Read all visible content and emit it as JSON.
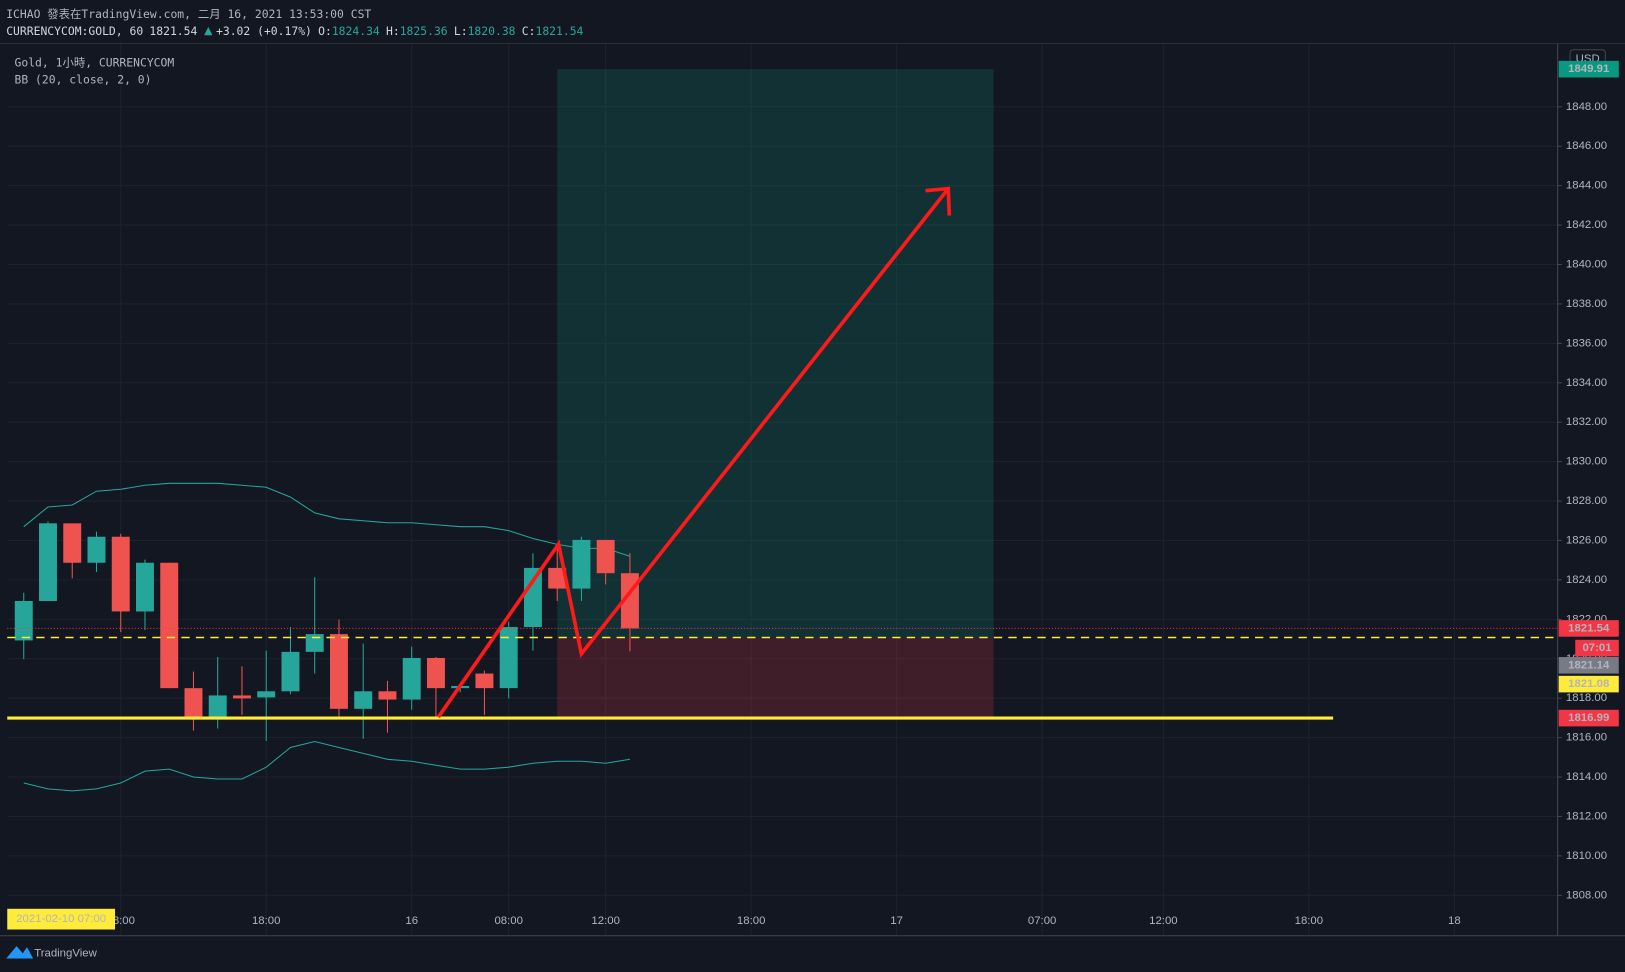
{
  "header": {
    "title": "ICHAO 發表在TradingView.com, 二月 16, 2021 13:53:00 CST",
    "symbol": "CURRENCYCOM:GOLD, 60",
    "last": 1821.54,
    "change": "+3.02 (+0.17%)",
    "open_label": "O:",
    "open": 1824.34,
    "high_label": "H:",
    "high": 1825.36,
    "low_label": "L:",
    "low": 1820.38,
    "close_label": "C:",
    "close": 1821.54
  },
  "chart_data": {
    "type": "candlestick",
    "legend_title": "Gold, 1小時, CURRENCYCOM",
    "indicator": "BB (20, close, 2, 0)",
    "currency": "USD",
    "crosshair_label": "2021-02-10  07:00",
    "countdown": "07:01",
    "up_color": "#26a69a",
    "down_color": "#ef5350",
    "band_color": "#26a69a",
    "open": [
      1820.93,
      1822.93,
      1826.87,
      1824.87,
      1826.19,
      1822.4,
      1824.87,
      1818.51,
      1816.99,
      1818.14,
      1818.04,
      1818.35,
      1820.35,
      1821.25,
      1817.46,
      1818.35,
      1817.93,
      1820.04,
      1818.51,
      1819.25,
      1818.51,
      1821.61,
      1824.61,
      1823.56,
      1826.03,
      1824.34
    ],
    "high": [
      1823.35,
      1826.97,
      1826.87,
      1826.45,
      1826.34,
      1825.03,
      1824.87,
      1819.35,
      1820.09,
      1819.62,
      1820.41,
      1821.61,
      1824.14,
      1821.98,
      1820.77,
      1818.88,
      1820.62,
      1820.09,
      1818.72,
      1819.4,
      1821.88,
      1825.35,
      1825.82,
      1826.19,
      1826.03,
      1825.36
    ],
    "low": [
      1819.98,
      1822.93,
      1824.08,
      1824.4,
      1821.35,
      1821.46,
      1818.51,
      1816.36,
      1816.46,
      1817.15,
      1815.83,
      1818.2,
      1819.25,
      1817.04,
      1815.94,
      1816.25,
      1817.41,
      1817.04,
      1818.3,
      1817.15,
      1817.99,
      1820.41,
      1822.93,
      1822.93,
      1823.77,
      1820.38
    ],
    "close": [
      1822.93,
      1826.87,
      1824.87,
      1826.19,
      1822.4,
      1824.87,
      1818.51,
      1816.99,
      1818.14,
      1817.99,
      1818.35,
      1820.35,
      1821.25,
      1817.46,
      1818.35,
      1817.93,
      1820.04,
      1818.51,
      1818.62,
      1818.51,
      1821.61,
      1824.61,
      1823.56,
      1826.03,
      1824.34,
      1821.54
    ],
    "bb_upper": [
      1826.7,
      1827.7,
      1827.8,
      1828.5,
      1828.6,
      1828.8,
      1828.9,
      1828.9,
      1828.9,
      1828.8,
      1828.7,
      1828.2,
      1827.4,
      1827.1,
      1827.0,
      1826.9,
      1826.9,
      1826.8,
      1826.7,
      1826.7,
      1826.5,
      1826.1,
      1825.8,
      1825.6,
      1825.6,
      1825.2
    ],
    "bb_lower": [
      1813.7,
      1813.4,
      1813.3,
      1813.4,
      1813.7,
      1814.3,
      1814.4,
      1814.0,
      1813.9,
      1813.9,
      1814.5,
      1815.5,
      1815.8,
      1815.5,
      1815.2,
      1814.9,
      1814.8,
      1814.6,
      1814.4,
      1814.4,
      1814.5,
      1814.7,
      1814.8,
      1814.8,
      1814.7,
      1814.9
    ],
    "bb_basis_last": 1821.14,
    "position": {
      "target": 1849.91,
      "entry": 1821.08,
      "stop": 1816.99,
      "start": 22,
      "end": 40
    },
    "hline": {
      "price": 1816.99,
      "end": 54
    },
    "xlim": [
      -0.68,
      63.26
    ],
    "ylim": [
      1805.95,
      1851.21
    ],
    "xticks": [
      {
        "value": 4,
        "label": "08:00"
      },
      {
        "value": 10,
        "label": "18:00"
      },
      {
        "value": 16,
        "label": "16"
      },
      {
        "value": 20,
        "label": "08:00"
      },
      {
        "value": 24,
        "label": "12:00"
      },
      {
        "value": 30,
        "label": "18:00"
      },
      {
        "value": 36,
        "label": "17"
      },
      {
        "value": 42,
        "label": "07:00"
      },
      {
        "value": 47,
        "label": "12:00"
      },
      {
        "value": 53,
        "label": "18:00"
      },
      {
        "value": 59,
        "label": "18"
      }
    ],
    "yticks": [
      {
        "value": 1808,
        "label": "1808.00"
      },
      {
        "value": 1810,
        "label": "1810.00"
      },
      {
        "value": 1812,
        "label": "1812.00"
      },
      {
        "value": 1814,
        "label": "1814.00"
      },
      {
        "value": 1816,
        "label": "1816.00"
      },
      {
        "value": 1818,
        "label": "1818.00"
      },
      {
        "value": 1820,
        "label": "1820.00"
      },
      {
        "value": 1822,
        "label": "1822.00"
      },
      {
        "value": 1824,
        "label": "1824.00"
      },
      {
        "value": 1826,
        "label": "1826.00"
      },
      {
        "value": 1828,
        "label": "1828.00"
      },
      {
        "value": 1830,
        "label": "1830.00"
      },
      {
        "value": 1832,
        "label": "1832.00"
      },
      {
        "value": 1834,
        "label": "1834.00"
      },
      {
        "value": 1836,
        "label": "1836.00"
      },
      {
        "value": 1838,
        "label": "1838.00"
      },
      {
        "value": 1840,
        "label": "1840.00"
      },
      {
        "value": 1842,
        "label": "1842.00"
      },
      {
        "value": 1844,
        "label": "1844.00"
      },
      {
        "value": 1846,
        "label": "1846.00"
      },
      {
        "value": 1848,
        "label": "1848.00"
      }
    ],
    "grid": true
  },
  "footer": {
    "brand": "TradingView"
  }
}
